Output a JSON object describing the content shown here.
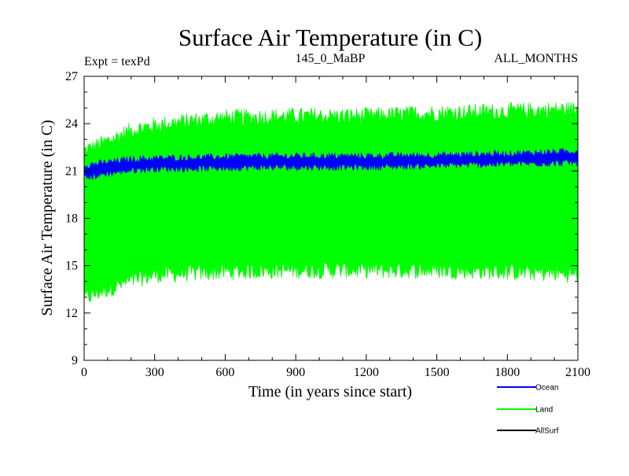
{
  "chart_data": {
    "type": "line",
    "title": "Surface Air Temperature (in C)",
    "subtitle_left": "Expt = texPd",
    "subtitle_center": "145_0_MaBP",
    "subtitle_right": "ALL_MONTHS",
    "xlabel": "Time (in years since start)",
    "ylabel": "Surface Air Temperature (in C)",
    "xlim": [
      0,
      2100
    ],
    "ylim": [
      9,
      27
    ],
    "xticks": [
      0,
      300,
      600,
      900,
      1200,
      1500,
      1800,
      2100
    ],
    "yticks": [
      9,
      12,
      15,
      18,
      21,
      24,
      27
    ],
    "series": [
      {
        "name": "Land",
        "color": "#00ff00",
        "style": "band",
        "x": [
          0,
          100,
          200,
          300,
          450,
          600,
          900,
          1200,
          1500,
          1800,
          2000,
          2100
        ],
        "upper": [
          22.4,
          23.0,
          23.7,
          24.0,
          24.3,
          24.5,
          24.6,
          24.6,
          24.8,
          24.9,
          25.0,
          25.0
        ],
        "lower": [
          12.8,
          13.4,
          13.9,
          14.3,
          14.4,
          14.5,
          14.6,
          14.6,
          14.6,
          14.5,
          14.4,
          14.3
        ]
      },
      {
        "name": "Ocean",
        "color": "#0000ff",
        "style": "band",
        "x": [
          0,
          100,
          200,
          300,
          450,
          600,
          900,
          1200,
          1500,
          1800,
          2000,
          2100
        ],
        "upper": [
          21.4,
          21.6,
          21.8,
          21.85,
          21.9,
          21.95,
          22.0,
          22.0,
          22.05,
          22.15,
          22.25,
          22.3
        ],
        "lower": [
          20.5,
          20.8,
          21.0,
          21.1,
          21.1,
          21.15,
          21.2,
          21.2,
          21.3,
          21.4,
          21.45,
          21.5
        ]
      },
      {
        "name": "AllSurf",
        "color": "#000000",
        "style": "line",
        "x": [],
        "values": []
      }
    ],
    "legend": [
      "Ocean",
      "Land",
      "AllSurf"
    ],
    "legend_position": "bottom-right"
  }
}
